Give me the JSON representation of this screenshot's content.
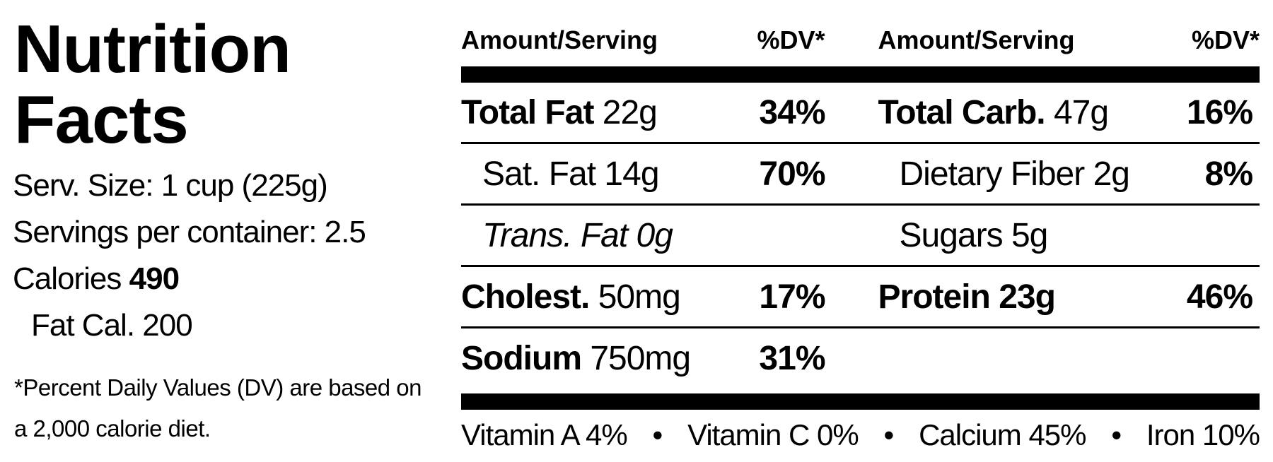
{
  "title": "Nutrition Facts",
  "serving_size": "Serv. Size: 1 cup (225g)",
  "servings": "Servings per container: 2.5",
  "calories": {
    "label": "Calories",
    "value": "490"
  },
  "fat_calories": "Fat Cal. 200",
  "footnote": "*Percent Daily Values (DV) are based on a 2,000 calorie diet.",
  "columns": [
    {
      "header_amount": "Amount/Serving",
      "header_dv": "%DV*",
      "rows": [
        {
          "name": "Total Fat",
          "amount": "22g",
          "dv": "34%",
          "style": "main"
        },
        {
          "name": "Sat. Fat",
          "amount": "14g",
          "dv": "70%",
          "style": "sub"
        },
        {
          "name": "Trans.",
          "amount": "Fat 0g",
          "style": "italic"
        },
        {
          "name": "Cholest.",
          "amount": "50mg",
          "dv": "17%",
          "style": "main"
        },
        {
          "name": "Sodium",
          "amount": "750mg",
          "dv": "31%",
          "style": "main"
        }
      ]
    },
    {
      "header_amount": "Amount/Serving",
      "header_dv": "%DV*",
      "rows": [
        {
          "name": "Total Carb.",
          "amount": "47g",
          "dv": "16%",
          "style": "main"
        },
        {
          "name": "Dietary Fiber",
          "amount": "2g",
          "dv": "8%",
          "style": "sub"
        },
        {
          "name": "Sugars",
          "amount": "5g",
          "style": "sub"
        },
        {
          "name": "Protein",
          "amount": "23g",
          "dv": "46%",
          "style": "bold"
        }
      ]
    }
  ],
  "vitamins": [
    "Vitamin A 4%",
    "Vitamin C 0%",
    "Calcium 45%",
    "Iron 10%"
  ],
  "separator": "•"
}
